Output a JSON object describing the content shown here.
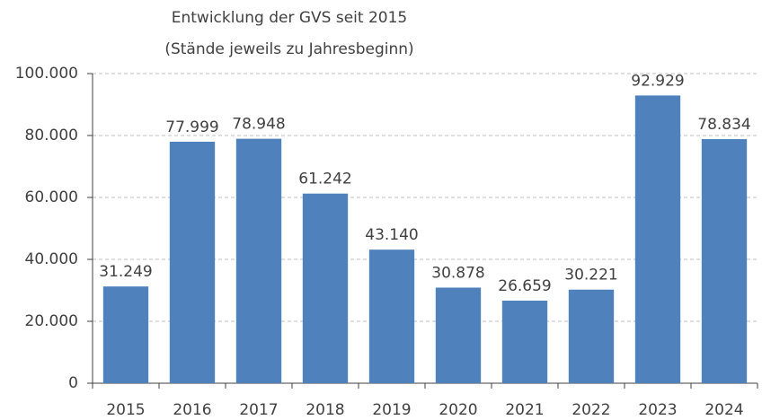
{
  "chart_data": {
    "type": "bar",
    "title": "Entwicklung der GVS seit 2015",
    "subtitle": "(Stände jeweils zu Jahresbeginn)",
    "categories": [
      "2015",
      "2016",
      "2017",
      "2018",
      "2019",
      "2020",
      "2021",
      "2022",
      "2023",
      "2024"
    ],
    "values": [
      31249,
      77999,
      78948,
      61242,
      43140,
      30878,
      26659,
      30221,
      92929,
      78834
    ],
    "value_labels": [
      "31.249",
      "77.999",
      "78.948",
      "61.242",
      "43.140",
      "30.878",
      "26.659",
      "30.221",
      "92.929",
      "78.834"
    ],
    "color": "#4f81bd",
    "ylim": [
      0,
      100000
    ],
    "yticks": [
      0,
      {
        "value": 20000,
        "label": "20.000"
      },
      {
        "value": 40000,
        "label": "40.000"
      },
      {
        "value": 60000,
        "label": "60.000"
      },
      {
        "value": 80000,
        "label": "80.000"
      },
      {
        "value": 100000,
        "label": "100.000"
      }
    ],
    "grid": true
  }
}
